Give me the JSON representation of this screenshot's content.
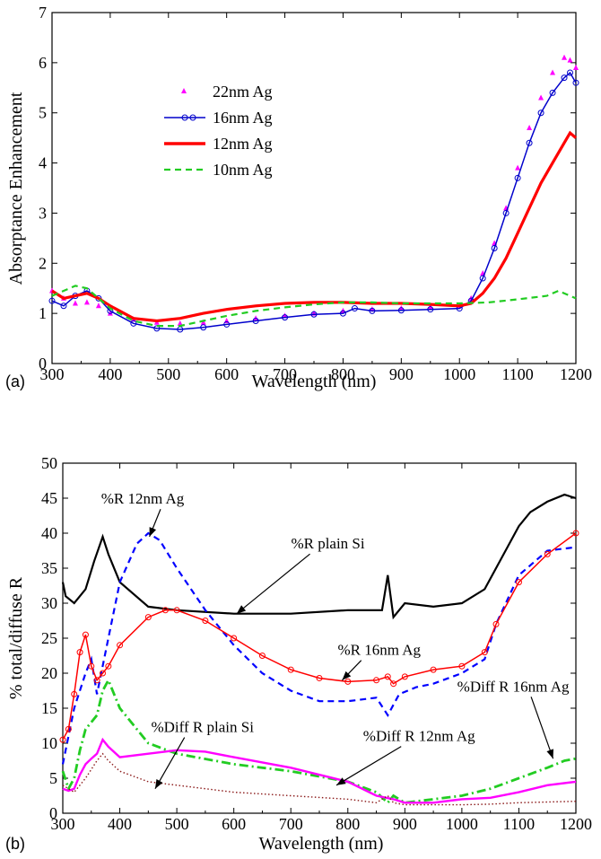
{
  "chart_data": [
    {
      "panel": "(a)",
      "type": "line",
      "xlabel": "Wavelength (nm)",
      "ylabel": "Absorptance Enhancement",
      "xlim": [
        300,
        1200
      ],
      "ylim": [
        0,
        7
      ],
      "xticks": [
        300,
        400,
        500,
        600,
        700,
        800,
        900,
        1000,
        1100,
        1200
      ],
      "yticks": [
        0,
        1,
        2,
        3,
        4,
        5,
        6,
        7
      ],
      "legend_position": "top-left",
      "series": [
        {
          "name": "22nm Ag",
          "color": "#ff00ff",
          "style": "triangles",
          "x": [
            300,
            320,
            340,
            360,
            380,
            400,
            440,
            480,
            520,
            560,
            600,
            650,
            700,
            750,
            800,
            850,
            900,
            950,
            1000,
            1020,
            1040,
            1060,
            1080,
            1100,
            1120,
            1140,
            1160,
            1180,
            1190,
            1200
          ],
          "y": [
            1.45,
            1.3,
            1.2,
            1.22,
            1.15,
            1.0,
            0.88,
            0.82,
            0.8,
            0.82,
            0.85,
            0.9,
            0.95,
            1.0,
            1.05,
            1.08,
            1.1,
            1.12,
            1.15,
            1.3,
            1.8,
            2.4,
            3.1,
            3.9,
            4.7,
            5.3,
            5.8,
            6.1,
            6.05,
            5.9
          ]
        },
        {
          "name": "16nm Ag",
          "color": "#0000cc",
          "style": "open-circles-line",
          "x": [
            300,
            320,
            340,
            360,
            380,
            400,
            440,
            480,
            520,
            560,
            600,
            650,
            700,
            750,
            800,
            820,
            850,
            900,
            950,
            1000,
            1020,
            1040,
            1060,
            1080,
            1100,
            1120,
            1140,
            1160,
            1180,
            1190,
            1200
          ],
          "y": [
            1.25,
            1.15,
            1.35,
            1.45,
            1.3,
            1.05,
            0.8,
            0.7,
            0.68,
            0.72,
            0.78,
            0.85,
            0.92,
            0.98,
            1.0,
            1.1,
            1.05,
            1.06,
            1.08,
            1.1,
            1.25,
            1.7,
            2.3,
            3.0,
            3.7,
            4.4,
            5.0,
            5.4,
            5.7,
            5.8,
            5.6
          ]
        },
        {
          "name": "12nm Ag",
          "color": "#ff0000",
          "style": "thick-solid",
          "x": [
            300,
            320,
            340,
            360,
            380,
            400,
            440,
            480,
            520,
            560,
            600,
            650,
            700,
            750,
            800,
            850,
            900,
            950,
            1000,
            1020,
            1040,
            1060,
            1080,
            1100,
            1120,
            1140,
            1160,
            1180,
            1190,
            1200
          ],
          "y": [
            1.45,
            1.3,
            1.35,
            1.4,
            1.3,
            1.15,
            0.9,
            0.85,
            0.9,
            1.0,
            1.08,
            1.15,
            1.2,
            1.22,
            1.22,
            1.2,
            1.2,
            1.18,
            1.15,
            1.2,
            1.4,
            1.7,
            2.1,
            2.6,
            3.1,
            3.6,
            4.0,
            4.4,
            4.6,
            4.5
          ]
        },
        {
          "name": "10nm Ag",
          "color": "#22cc22",
          "style": "dashed",
          "x": [
            300,
            320,
            340,
            360,
            380,
            400,
            440,
            480,
            520,
            560,
            600,
            650,
            700,
            750,
            800,
            850,
            900,
            950,
            1000,
            1050,
            1100,
            1150,
            1170,
            1200
          ],
          "y": [
            1.35,
            1.45,
            1.55,
            1.5,
            1.3,
            1.1,
            0.85,
            0.75,
            0.75,
            0.85,
            0.95,
            1.05,
            1.12,
            1.18,
            1.22,
            1.22,
            1.2,
            1.2,
            1.2,
            1.22,
            1.28,
            1.35,
            1.45,
            1.3
          ]
        }
      ]
    },
    {
      "panel": "(b)",
      "type": "line",
      "xlabel": "Wavelength (nm)",
      "ylabel": "% total/diffuse R",
      "xlim": [
        300,
        1200
      ],
      "ylim": [
        0,
        50
      ],
      "xticks": [
        300,
        400,
        500,
        600,
        700,
        800,
        900,
        1000,
        1100,
        1200
      ],
      "yticks": [
        0,
        5,
        10,
        15,
        20,
        25,
        30,
        35,
        40,
        45,
        50
      ],
      "series": [
        {
          "key": "R_plain_Si",
          "color": "#000000",
          "style": "solid",
          "x": [
            300,
            305,
            320,
            340,
            355,
            370,
            380,
            400,
            450,
            500,
            600,
            700,
            800,
            860,
            870,
            880,
            900,
            950,
            1000,
            1040,
            1060,
            1080,
            1100,
            1120,
            1150,
            1180,
            1200
          ],
          "y": [
            33,
            31,
            30,
            32,
            36,
            39.5,
            37,
            33,
            29.5,
            29,
            28.5,
            28.5,
            29,
            29,
            34,
            28,
            30,
            29.5,
            30,
            32,
            35,
            38,
            41,
            43,
            44.5,
            45.5,
            45
          ]
        },
        {
          "key": "R_12nm_Ag",
          "color": "#0000ff",
          "style": "dashed",
          "x": [
            300,
            320,
            340,
            350,
            360,
            380,
            400,
            430,
            450,
            470,
            500,
            550,
            600,
            650,
            700,
            750,
            800,
            850,
            870,
            890,
            920,
            950,
            1000,
            1040,
            1060,
            1100,
            1150,
            1200
          ],
          "y": [
            7,
            15,
            20,
            22,
            17,
            25,
            33,
            38.5,
            40,
            39,
            35,
            29,
            24,
            20,
            17.5,
            16,
            16,
            16.5,
            14,
            17,
            18,
            18.5,
            20,
            22,
            27,
            34,
            37.5,
            38
          ]
        },
        {
          "key": "R_16nm_Ag",
          "color": "#ff0000",
          "style": "open-circles-line",
          "x": [
            300,
            310,
            320,
            330,
            340,
            350,
            360,
            370,
            380,
            400,
            450,
            480,
            500,
            550,
            600,
            650,
            700,
            750,
            800,
            850,
            870,
            880,
            900,
            950,
            1000,
            1040,
            1060,
            1100,
            1150,
            1200
          ],
          "y": [
            10.5,
            12,
            17,
            23,
            25.5,
            21,
            19,
            20,
            21,
            24,
            28,
            29,
            29,
            27.5,
            25,
            22.5,
            20.5,
            19.3,
            18.8,
            19,
            19.5,
            18.5,
            19.5,
            20.5,
            21,
            23,
            27,
            33,
            37,
            40
          ]
        },
        {
          "key": "Diff_R_16nm_Ag",
          "color": "#22cc22",
          "style": "dash-dot",
          "x": [
            300,
            310,
            320,
            330,
            340,
            350,
            360,
            370,
            380,
            400,
            450,
            500,
            600,
            700,
            800,
            850,
            870,
            880,
            900,
            950,
            1000,
            1050,
            1100,
            1150,
            1180,
            1200
          ],
          "y": [
            6,
            3.5,
            5,
            9,
            12,
            13,
            14,
            17.5,
            19,
            15,
            10,
            8.5,
            7,
            6,
            4.5,
            3,
            1.5,
            2.5,
            1.5,
            2,
            2.5,
            3.5,
            5,
            6.5,
            7.5,
            7.8
          ]
        },
        {
          "key": "Diff_R_12nm_Ag",
          "color": "#ff00ff",
          "style": "solid-markers",
          "x": [
            300,
            310,
            320,
            330,
            340,
            350,
            360,
            370,
            380,
            400,
            450,
            500,
            550,
            600,
            700,
            800,
            850,
            880,
            900,
            950,
            1000,
            1050,
            1100,
            1150,
            1200
          ],
          "y": [
            3.5,
            3.2,
            3.5,
            5.5,
            7,
            7.8,
            8.5,
            10.5,
            9.5,
            8,
            8.5,
            9,
            8.8,
            8,
            6.5,
            4.5,
            2.5,
            2,
            1.5,
            1.5,
            2,
            2.2,
            3,
            4,
            4.5
          ]
        },
        {
          "key": "Diff_R_plain_Si",
          "color": "#8b1a1a",
          "style": "dotted",
          "x": [
            300,
            320,
            340,
            360,
            370,
            380,
            400,
            450,
            500,
            550,
            600,
            700,
            800,
            850,
            870,
            880,
            900,
            950,
            1000,
            1050,
            1100,
            1150,
            1200
          ],
          "y": [
            4,
            3,
            5,
            7.5,
            8.5,
            7.5,
            6,
            4.5,
            4,
            3.5,
            3,
            2.5,
            2,
            1.5,
            2.5,
            1.5,
            1.2,
            1.2,
            1.2,
            1.3,
            1.5,
            1.6,
            1.7
          ]
        }
      ],
      "annotations": [
        {
          "text": "%R 12nm Ag",
          "x": 440,
          "y": 44.2,
          "arrow_to": [
            452,
            39.5
          ]
        },
        {
          "text": "%R plain Si",
          "x": 765,
          "y": 37.8,
          "arrow_to": [
            605,
            28.5
          ]
        },
        {
          "text": "%R 16nm Ag",
          "x": 855,
          "y": 22.6,
          "arrow_to": [
            790,
            19
          ]
        },
        {
          "text": "%Diff R 16nm Ag",
          "x": 1090,
          "y": 17.4,
          "arrow_to": [
            1160,
            7.8
          ]
        },
        {
          "text": "%Diff R plain Si",
          "x": 545,
          "y": 11.6,
          "arrow_to": [
            462,
            3.5
          ]
        },
        {
          "text": "%Diff R 12nm Ag",
          "x": 925,
          "y": 10.3,
          "arrow_to": [
            780,
            4
          ]
        }
      ]
    }
  ],
  "panel_a_label": "(a)",
  "panel_b_label": "(b)"
}
